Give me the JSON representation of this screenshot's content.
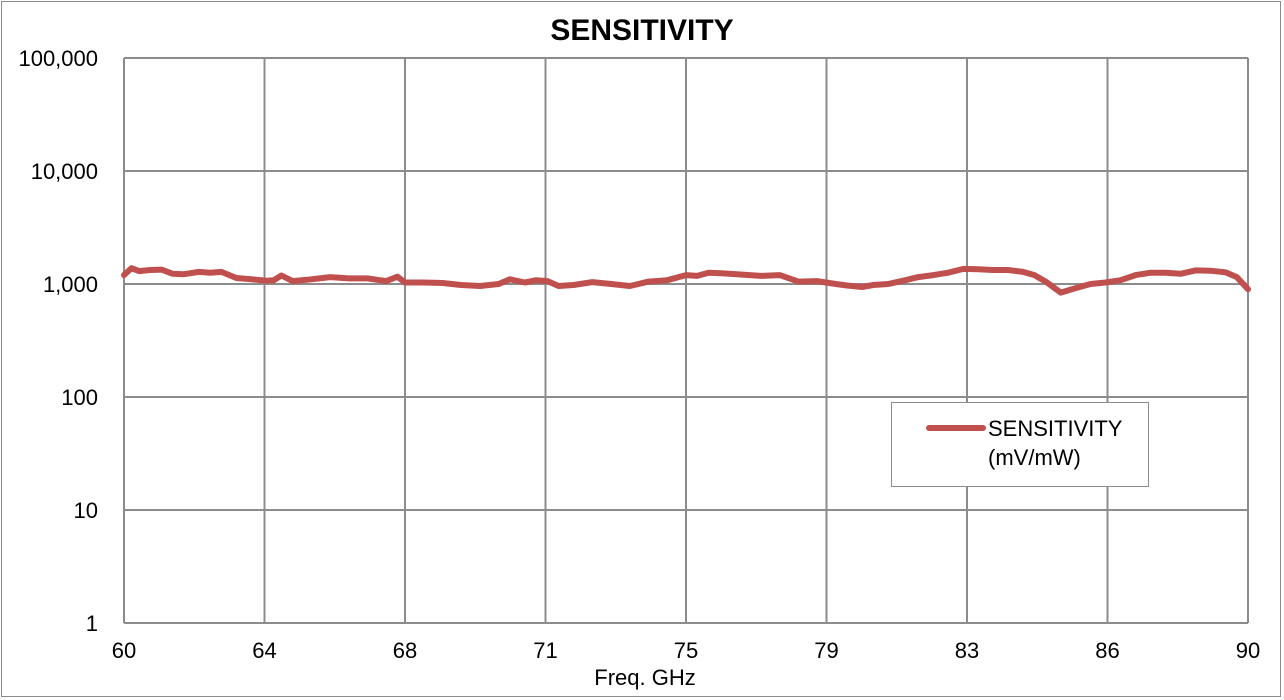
{
  "chart_data": {
    "type": "line",
    "title": "SENSITIVITY",
    "xlabel": "Freq. GHz",
    "ylabel": "",
    "yscale": "log",
    "ylim": [
      1,
      100000
    ],
    "xlim": [
      60,
      90
    ],
    "x_tick_labels": [
      "60",
      "64",
      "68",
      "71",
      "75",
      "79",
      "83",
      "86",
      "90"
    ],
    "y_tick_labels": [
      "1",
      "10",
      "100",
      "1,000",
      "10,000",
      "100,000"
    ],
    "grid": true,
    "legend": "center-right",
    "series": [
      {
        "name": "SENSITIVITY (mV/mW)",
        "legend_line1": "SENSITIVITY",
        "legend_line2": "(mV/mW)",
        "color": "#c0504d",
        "x": [
          60.0,
          60.2,
          60.4,
          60.7,
          61.0,
          61.3,
          61.6,
          62.0,
          62.3,
          62.6,
          63.0,
          63.4,
          63.8,
          64.0,
          64.2,
          64.5,
          65.0,
          65.5,
          66.0,
          66.5,
          67.0,
          67.3,
          67.5,
          68.0,
          68.5,
          69.0,
          69.5,
          70.0,
          70.3,
          70.7,
          71.0,
          71.3,
          71.6,
          72.0,
          72.5,
          73.0,
          73.5,
          74.0,
          74.5,
          75.0,
          75.3,
          75.6,
          76.0,
          76.5,
          77.0,
          77.5,
          78.0,
          78.5,
          79.0,
          79.3,
          79.7,
          80.0,
          80.4,
          80.8,
          81.2,
          81.6,
          82.0,
          82.4,
          82.8,
          83.2,
          83.6,
          84.0,
          84.3,
          84.6,
          85.0,
          85.4,
          85.8,
          86.2,
          86.6,
          87.0,
          87.4,
          87.8,
          88.2,
          88.6,
          89.0,
          89.4,
          89.7,
          90.0
        ],
        "y": [
          1200,
          1380,
          1300,
          1330,
          1340,
          1230,
          1220,
          1280,
          1260,
          1280,
          1130,
          1100,
          1070,
          1080,
          1190,
          1060,
          1100,
          1150,
          1120,
          1120,
          1060,
          1160,
          1030,
          1030,
          1020,
          980,
          960,
          1000,
          1100,
          1030,
          1080,
          1060,
          960,
          980,
          1040,
          1000,
          960,
          1050,
          1080,
          1200,
          1180,
          1260,
          1240,
          1210,
          1180,
          1200,
          1050,
          1060,
          1000,
          970,
          940,
          980,
          1000,
          1070,
          1150,
          1200,
          1260,
          1360,
          1350,
          1330,
          1330,
          1280,
          1200,
          1050,
          840,
          920,
          1000,
          1030,
          1080,
          1200,
          1260,
          1260,
          1230,
          1320,
          1310,
          1270,
          1150,
          900
        ]
      }
    ]
  }
}
